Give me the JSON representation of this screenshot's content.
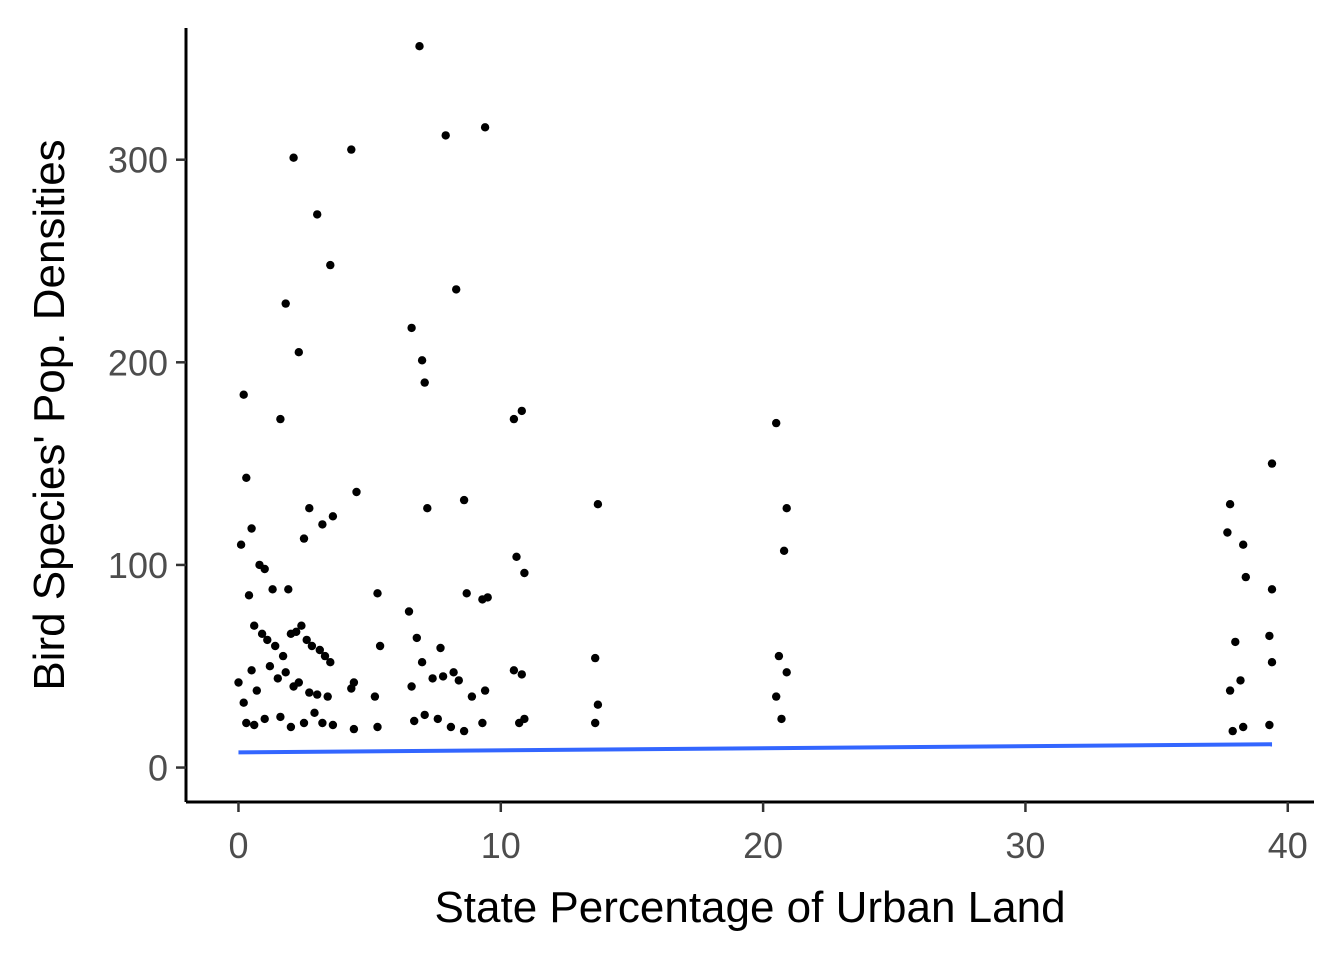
{
  "chart_data": {
    "type": "scatter",
    "title": "",
    "xlabel": "State Percentage of Urban Land",
    "ylabel": "Bird Species' Pop. Densities",
    "xlim": [
      -2,
      41
    ],
    "ylim": [
      -17,
      365
    ],
    "xticks": [
      0,
      10,
      20,
      30,
      40
    ],
    "xtick_labels": [
      "0",
      "10",
      "20",
      "30",
      "40"
    ],
    "yticks": [
      0,
      100,
      200,
      300
    ],
    "ytick_labels": [
      "0",
      "100",
      "200",
      "300"
    ],
    "grid": false,
    "legend": "none",
    "point_color": "#000000",
    "x": [
      0.2,
      0.3,
      0.5,
      0.8,
      1.0,
      1.3,
      1.6,
      1.8,
      1.9,
      2.1,
      2.3,
      2.5,
      2.7,
      3.0,
      3.2,
      3.5,
      3.6,
      4.3,
      4.5,
      5.3,
      6.6,
      6.9,
      7.0,
      7.1,
      7.9,
      8.3,
      8.6,
      9.4,
      9.5,
      10.5,
      10.8,
      13.7,
      20.5,
      20.9,
      37.8,
      38.3,
      39.4,
      39.4,
      0.1,
      0.4,
      0.6,
      0.9,
      1.1,
      1.4,
      1.7,
      2.0,
      2.2,
      2.4,
      2.6,
      2.8,
      3.1,
      3.3,
      3.5,
      4.4,
      5.4,
      6.5,
      6.8,
      7.2,
      7.7,
      8.2,
      8.7,
      9.3,
      10.6,
      10.9,
      13.6,
      20.6,
      20.8,
      37.7,
      38.0,
      38.4,
      39.3,
      0.0,
      0.2,
      0.5,
      0.7,
      1.2,
      1.5,
      1.8,
      2.1,
      2.3,
      2.7,
      3.0,
      3.4,
      4.3,
      5.2,
      6.6,
      7.0,
      7.4,
      7.8,
      8.4,
      8.9,
      9.4,
      10.5,
      10.8,
      13.7,
      20.5,
      20.9,
      37.8,
      38.2,
      39.4,
      0.3,
      0.6,
      1.0,
      1.6,
      2.0,
      2.5,
      2.9,
      3.2,
      3.6,
      4.4,
      5.3,
      6.7,
      7.1,
      7.6,
      8.1,
      8.6,
      9.3,
      10.7,
      10.9,
      13.6,
      20.7,
      37.9,
      38.3,
      39.3
    ],
    "y": [
      184,
      143,
      118,
      100,
      98,
      88,
      172,
      229,
      88,
      301,
      205,
      113,
      128,
      273,
      120,
      248,
      124,
      305,
      136,
      86,
      217,
      356,
      201,
      190,
      312,
      236,
      132,
      316,
      84,
      172,
      176,
      130,
      170,
      128,
      130,
      110,
      150,
      88,
      110,
      85,
      70,
      66,
      63,
      60,
      55,
      66,
      67,
      70,
      63,
      60,
      58,
      55,
      52,
      42,
      60,
      77,
      64,
      128,
      59,
      47,
      86,
      83,
      104,
      96,
      54,
      55,
      107,
      116,
      62,
      94,
      65,
      42,
      32,
      48,
      38,
      50,
      44,
      47,
      40,
      42,
      37,
      36,
      35,
      39,
      35,
      40,
      52,
      44,
      45,
      43,
      35,
      38,
      48,
      46,
      31,
      35,
      47,
      38,
      43,
      52,
      22,
      21,
      24,
      25,
      20,
      22,
      27,
      22,
      21,
      19,
      20,
      23,
      26,
      24,
      20,
      18,
      22,
      22,
      24,
      22,
      24,
      18,
      20,
      21
    ],
    "trend": {
      "x": [
        0,
        39.4
      ],
      "y": [
        7.5,
        11.5
      ],
      "color": "#3366ff"
    }
  }
}
